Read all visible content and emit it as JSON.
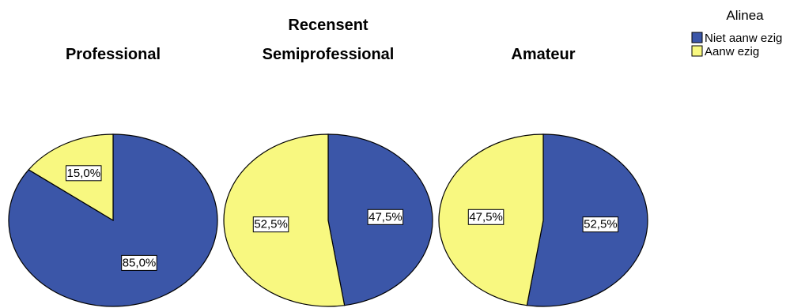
{
  "chart_data": {
    "type": "pie",
    "title": "Recensent",
    "legend": {
      "title": "Alinea",
      "position": "top-right",
      "entries": [
        {
          "label": "Niet aanw ezig",
          "color": "#3b56a8"
        },
        {
          "label": "Aanw ezig",
          "color": "#f8f880"
        }
      ]
    },
    "pies": [
      {
        "title": "Professional",
        "slices": [
          {
            "category": "Niet aanw ezig",
            "value": 85.0,
            "label": "85,0%"
          },
          {
            "category": "Aanw ezig",
            "value": 15.0,
            "label": "15,0%"
          }
        ]
      },
      {
        "title": "Semiprofessional",
        "slices": [
          {
            "category": "Niet aanw ezig",
            "value": 47.5,
            "label": "47,5%"
          },
          {
            "category": "Aanw ezig",
            "value": 52.5,
            "label": "52,5%"
          }
        ]
      },
      {
        "title": "Amateur",
        "slices": [
          {
            "category": "Niet aanw ezig",
            "value": 52.5,
            "label": "52,5%"
          },
          {
            "category": "Aanw ezig",
            "value": 47.5,
            "label": "47,5%"
          }
        ]
      }
    ]
  }
}
